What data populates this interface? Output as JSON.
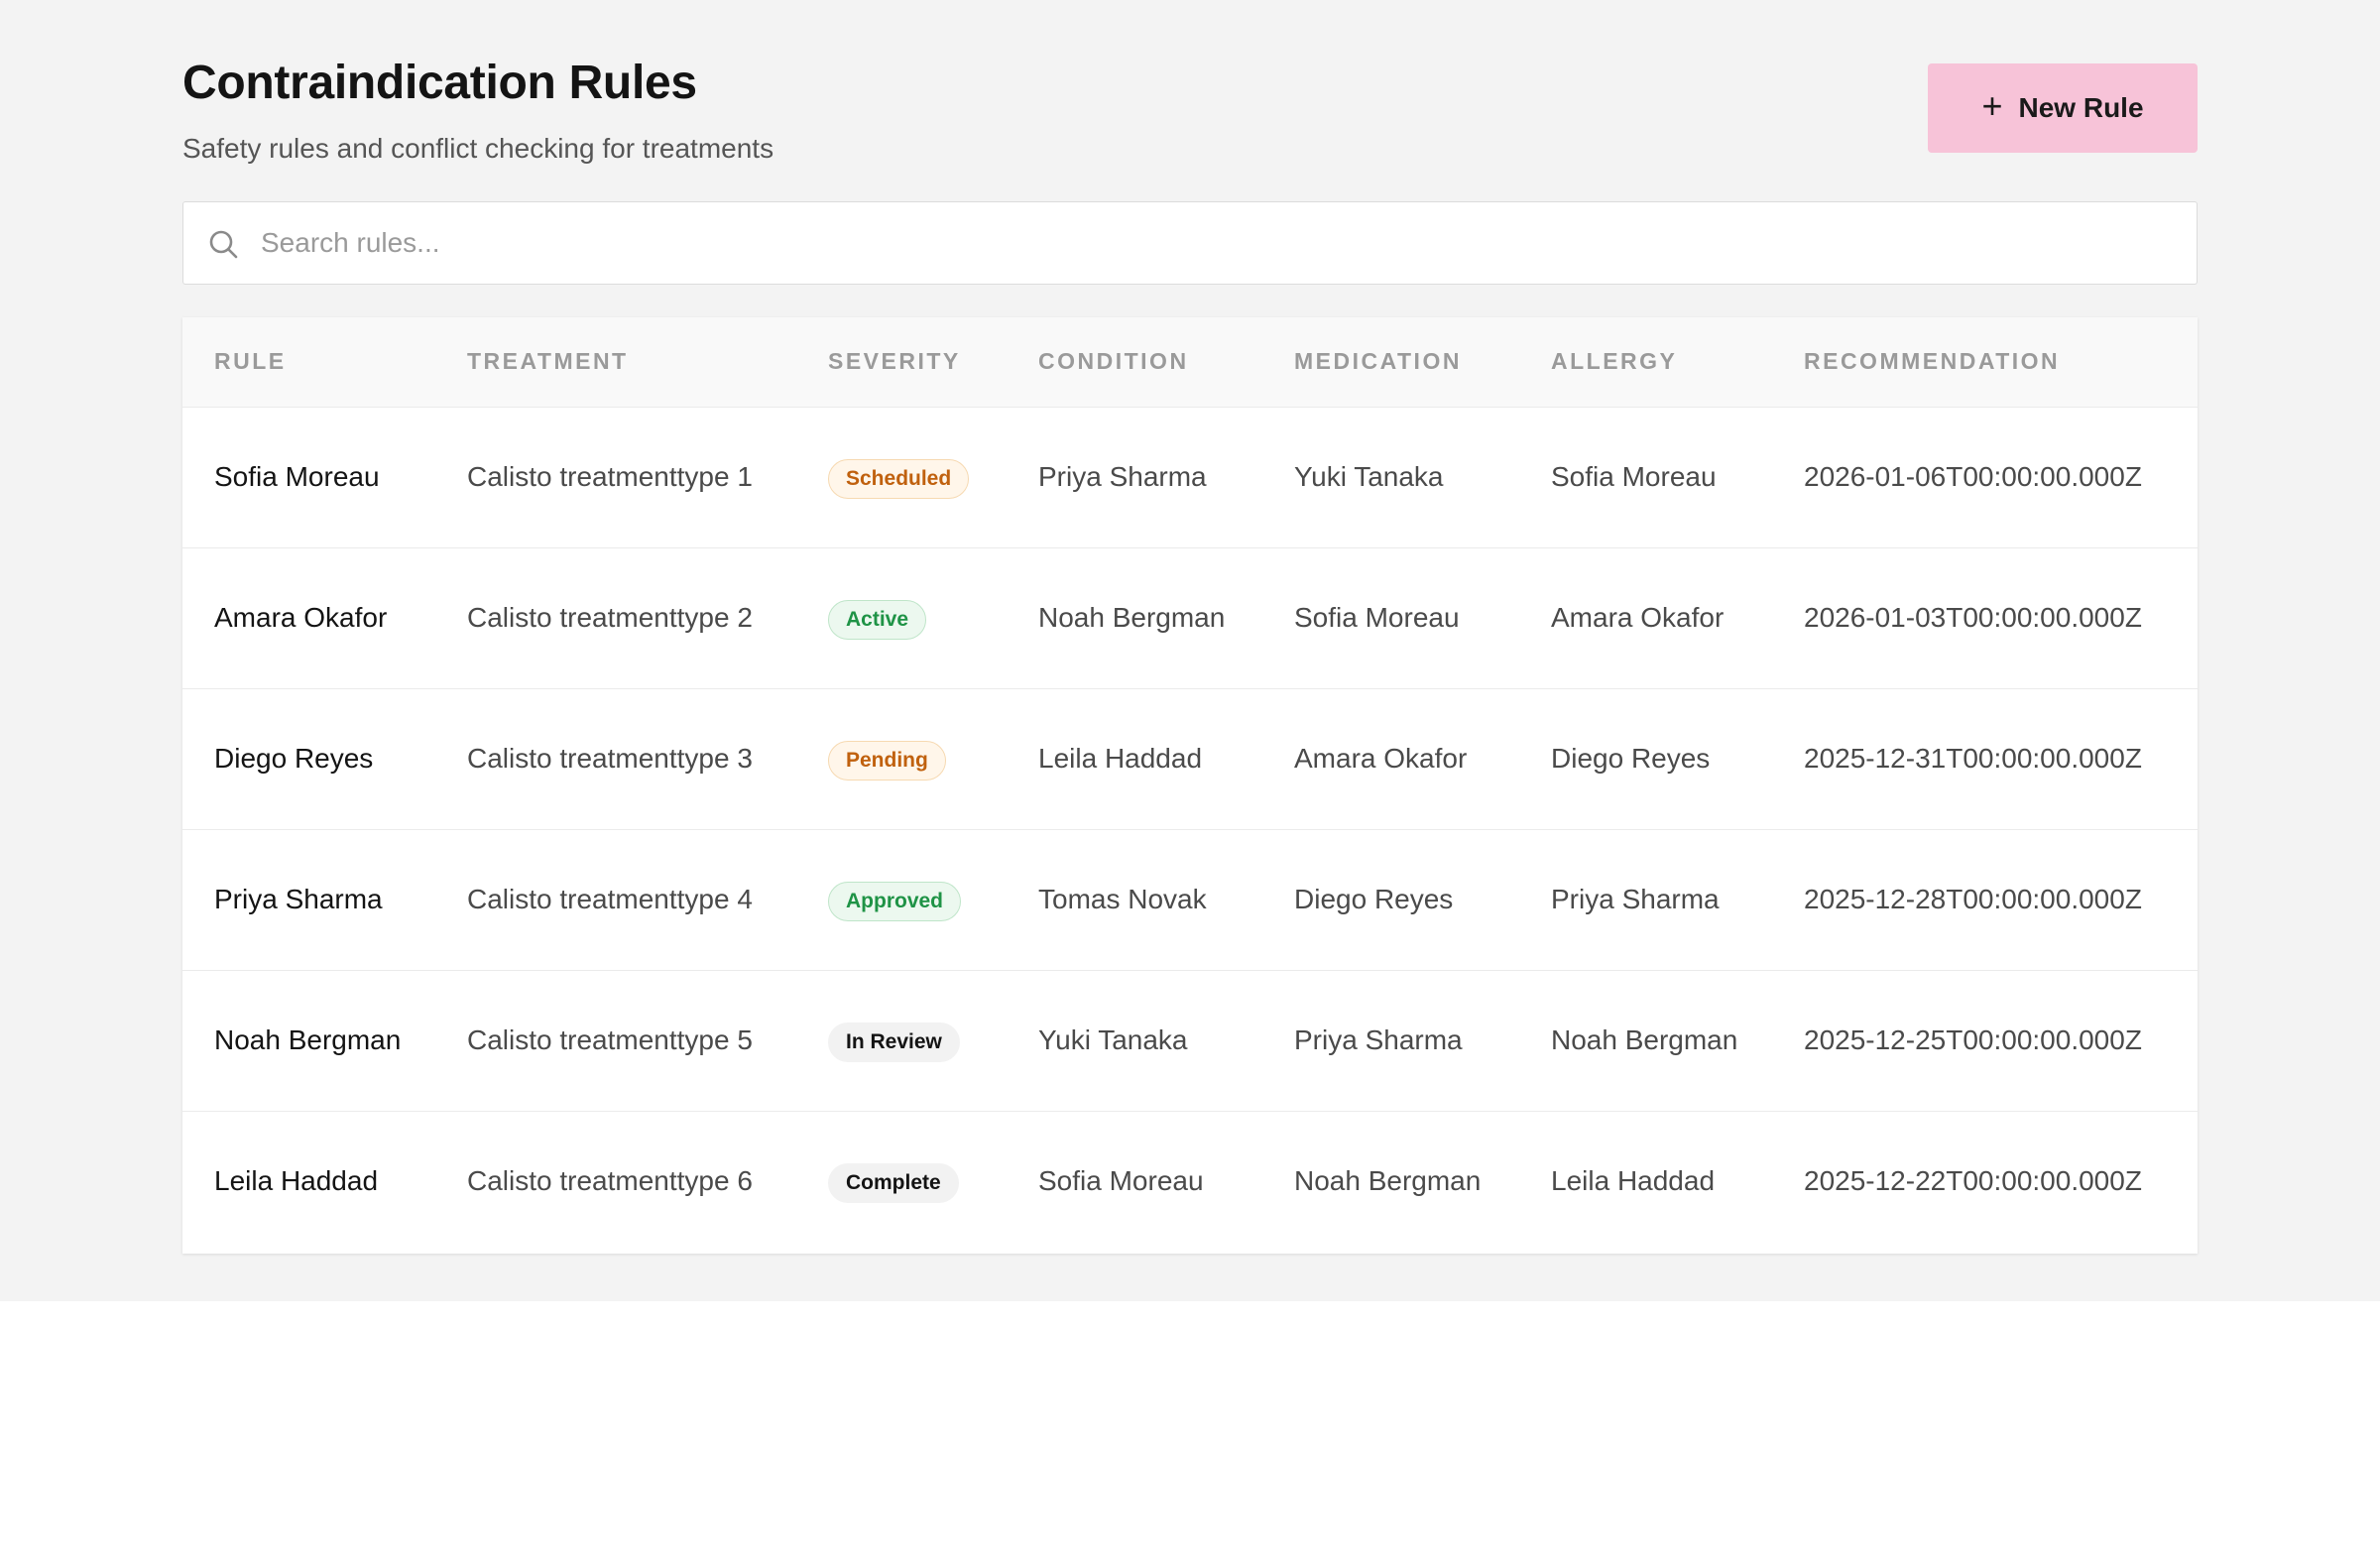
{
  "header": {
    "title": "Contraindication Rules",
    "subtitle": "Safety rules and conflict checking for treatments",
    "new_button_label": "New Rule"
  },
  "search": {
    "placeholder": "Search rules...",
    "value": ""
  },
  "table": {
    "columns": [
      "RULE",
      "TREATMENT",
      "SEVERITY",
      "CONDITION",
      "MEDICATION",
      "ALLERGY",
      "RECOMMENDATION"
    ],
    "rows": [
      {
        "rule": "Sofia Moreau",
        "treatment": "Calisto treatmenttype 1",
        "severity": "Scheduled",
        "condition": "Priya Sharma",
        "medication": "Yuki Tanaka",
        "allergy": "Sofia Moreau",
        "recommendation": "2026-01-06T00:00:00.000Z"
      },
      {
        "rule": "Amara Okafor",
        "treatment": "Calisto treatmenttype 2",
        "severity": "Active",
        "condition": "Noah Bergman",
        "medication": "Sofia Moreau",
        "allergy": "Amara Okafor",
        "recommendation": "2026-01-03T00:00:00.000Z"
      },
      {
        "rule": "Diego Reyes",
        "treatment": "Calisto treatmenttype 3",
        "severity": "Pending",
        "condition": "Leila Haddad",
        "medication": "Amara Okafor",
        "allergy": "Diego Reyes",
        "recommendation": "2025-12-31T00:00:00.000Z"
      },
      {
        "rule": "Priya Sharma",
        "treatment": "Calisto treatmenttype 4",
        "severity": "Approved",
        "condition": "Tomas Novak",
        "medication": "Diego Reyes",
        "allergy": "Priya Sharma",
        "recommendation": "2025-12-28T00:00:00.000Z"
      },
      {
        "rule": "Noah Bergman",
        "treatment": "Calisto treatmenttype 5",
        "severity": "In Review",
        "condition": "Yuki Tanaka",
        "medication": "Priya Sharma",
        "allergy": "Noah Bergman",
        "recommendation": "2025-12-25T00:00:00.000Z"
      },
      {
        "rule": "Leila Haddad",
        "treatment": "Calisto treatmenttype 6",
        "severity": "Complete",
        "condition": "Sofia Moreau",
        "medication": "Noah Bergman",
        "allergy": "Leila Haddad",
        "recommendation": "2025-12-22T00:00:00.000Z"
      }
    ]
  },
  "colors": {
    "accent_button": "#f7c3d8",
    "page_background": "#f3f3f3",
    "badge_warning_text": "#c0610e",
    "badge_success_text": "#1f9346"
  },
  "icons": {
    "search": "search-icon",
    "plus": "plus-icon"
  }
}
